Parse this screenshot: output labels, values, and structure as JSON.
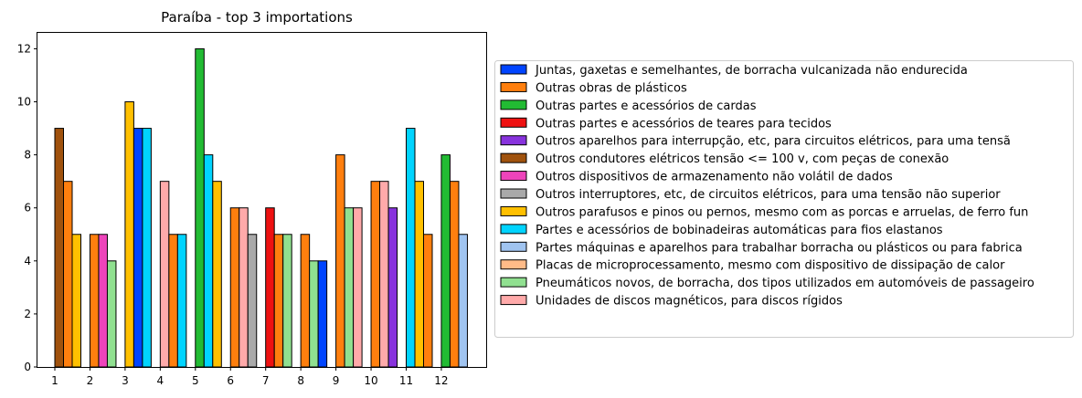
{
  "chart_data": {
    "type": "bar",
    "title": "Paraíba - top 3 importations",
    "xlabel": "",
    "ylabel": "",
    "ylim": [
      0,
      12.6
    ],
    "x_ticks": [
      "1",
      "2",
      "3",
      "4",
      "5",
      "6",
      "7",
      "8",
      "9",
      "10",
      "11",
      "12"
    ],
    "y_ticks": [
      "0",
      "2",
      "4",
      "6",
      "8",
      "10",
      "12"
    ],
    "legend_position": "right",
    "series": [
      {
        "name": "Juntas, gaxetas e semelhantes, de borracha vulcanizada não endurecida",
        "color": "#0044ff"
      },
      {
        "name": "Outras obras de plásticos",
        "color": "#ff7f0e"
      },
      {
        "name": "Outras partes e acessórios de cardas",
        "color": "#22bb33"
      },
      {
        "name": "Outras partes e acessórios de teares para tecidos",
        "color": "#ee1111"
      },
      {
        "name": "Outros aparelhos para interrupção, etc, para circuitos elétricos, para uma tensã",
        "color": "#8833dd"
      },
      {
        "name": "Outros condutores elétricos tensão <= 100 v, com peças de conexão",
        "color": "#a0520d"
      },
      {
        "name": "Outros dispositivos de armazenamento não volátil de dados",
        "color": "#ee44bb"
      },
      {
        "name": "Outros interruptores, etc, de circuitos elétricos, para uma tensão não superior",
        "color": "#a9a9a9"
      },
      {
        "name": "Outros parafusos e pinos ou pernos, mesmo com as porcas e arruelas, de ferro fun",
        "color": "#ffc000"
      },
      {
        "name": "Partes e acessórios de bobinadeiras automáticas para fios elastanos",
        "color": "#00d4ff"
      },
      {
        "name": "Partes máquinas e aparelhos para trabalhar borracha ou plásticos ou para fabrica",
        "color": "#a0c4f0"
      },
      {
        "name": "Placas de microprocessamento, mesmo com dispositivo de dissipação de calor",
        "color": "#ffbb88"
      },
      {
        "name": "Pneumáticos novos, de borracha, dos tipos utilizados em automóveis de passageiro",
        "color": "#90e090"
      },
      {
        "name": "Unidades de discos magnéticos, para discos rígidos",
        "color": "#ffaaaa"
      }
    ],
    "groups": [
      {
        "x": "1",
        "bars": [
          {
            "series": 5,
            "value": 9
          },
          {
            "series": 1,
            "value": 7
          },
          {
            "series": 8,
            "value": 5
          }
        ]
      },
      {
        "x": "2",
        "bars": [
          {
            "series": 1,
            "value": 5
          },
          {
            "series": 6,
            "value": 5
          },
          {
            "series": 12,
            "value": 4
          }
        ]
      },
      {
        "x": "3",
        "bars": [
          {
            "series": 8,
            "value": 10
          },
          {
            "series": 0,
            "value": 9
          },
          {
            "series": 9,
            "value": 9
          }
        ]
      },
      {
        "x": "4",
        "bars": [
          {
            "series": 13,
            "value": 7
          },
          {
            "series": 1,
            "value": 5
          },
          {
            "series": 9,
            "value": 5
          }
        ]
      },
      {
        "x": "5",
        "bars": [
          {
            "series": 2,
            "value": 12
          },
          {
            "series": 9,
            "value": 8
          },
          {
            "series": 8,
            "value": 7
          }
        ]
      },
      {
        "x": "6",
        "bars": [
          {
            "series": 1,
            "value": 6
          },
          {
            "series": 13,
            "value": 6
          },
          {
            "series": 7,
            "value": 5
          }
        ]
      },
      {
        "x": "7",
        "bars": [
          {
            "series": 3,
            "value": 6
          },
          {
            "series": 1,
            "value": 5
          },
          {
            "series": 12,
            "value": 5
          }
        ]
      },
      {
        "x": "8",
        "bars": [
          {
            "series": 1,
            "value": 5
          },
          {
            "series": 12,
            "value": 4
          },
          {
            "series": 0,
            "value": 4
          }
        ]
      },
      {
        "x": "9",
        "bars": [
          {
            "series": 1,
            "value": 8
          },
          {
            "series": 12,
            "value": 6
          },
          {
            "series": 13,
            "value": 6
          }
        ]
      },
      {
        "x": "10",
        "bars": [
          {
            "series": 1,
            "value": 7
          },
          {
            "series": 13,
            "value": 7
          },
          {
            "series": 4,
            "value": 6
          }
        ]
      },
      {
        "x": "11",
        "bars": [
          {
            "series": 9,
            "value": 9
          },
          {
            "series": 8,
            "value": 7
          },
          {
            "series": 1,
            "value": 5
          }
        ]
      },
      {
        "x": "12",
        "bars": [
          {
            "series": 2,
            "value": 8
          },
          {
            "series": 1,
            "value": 7
          },
          {
            "series": 10,
            "value": 5
          }
        ]
      }
    ]
  }
}
